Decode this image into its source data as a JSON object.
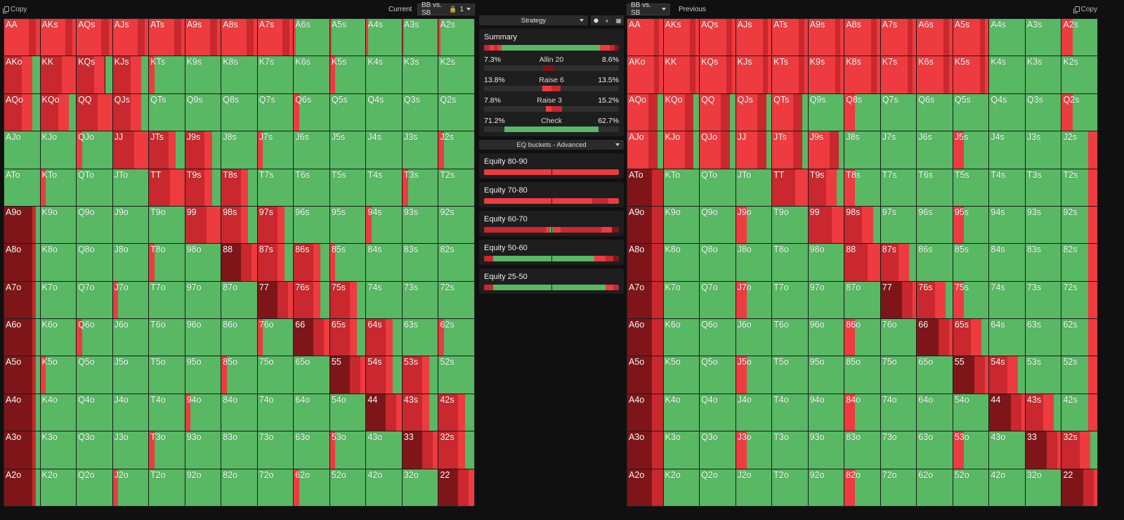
{
  "colors": {
    "green": "#58b864",
    "red": "#ee3b3f",
    "red2": "#c8282e",
    "red3": "#7e1619",
    "bg": "#101010"
  },
  "left": {
    "copy_label": "Copy",
    "current_label": "Current",
    "select_value": "BB vs. SB",
    "lock_value": "1"
  },
  "right": {
    "copy_label": "Copy",
    "previous_label": "Previous",
    "select_value": "BB vs. SB"
  },
  "middle": {
    "strategy_label": "Strategy",
    "tool_icons": [
      "cube-icon",
      "contrast-icon",
      "grid-icon"
    ],
    "summary": {
      "title": "Summary",
      "rows": [
        {
          "left": "7.3%",
          "name": "Allin 20",
          "right": "8.6%"
        },
        {
          "left": "13.8%",
          "name": "Raise 6",
          "right": "13.5%"
        },
        {
          "left": "7.8%",
          "name": "Raise 3",
          "right": "15.2%"
        },
        {
          "left": "71.2%",
          "name": "Check",
          "right": "62.7%"
        }
      ]
    },
    "eq_label": "EQ buckets - Advanced",
    "buckets": [
      {
        "title": "Equity 80-90"
      },
      {
        "title": "Equity 70-80"
      },
      {
        "title": "Equity 60-70"
      },
      {
        "title": "Equity 50-60"
      },
      {
        "title": "Equity 25-50"
      }
    ]
  },
  "hands": [
    "AA",
    "AKs",
    "AQs",
    "AJs",
    "ATs",
    "A9s",
    "A8s",
    "A7s",
    "A6s",
    "A5s",
    "A4s",
    "A3s",
    "A2s",
    "AKo",
    "KK",
    "KQs",
    "KJs",
    "KTs",
    "K9s",
    "K8s",
    "K7s",
    "K6s",
    "K5s",
    "K4s",
    "K3s",
    "K2s",
    "AQo",
    "KQo",
    "QQ",
    "QJs",
    "QTs",
    "Q9s",
    "Q8s",
    "Q7s",
    "Q6s",
    "Q5s",
    "Q4s",
    "Q3s",
    "Q2s",
    "AJo",
    "KJo",
    "QJo",
    "JJ",
    "JTs",
    "J9s",
    "J8s",
    "J7s",
    "J6s",
    "J5s",
    "J4s",
    "J3s",
    "J2s",
    "ATo",
    "KTo",
    "QTo",
    "JTo",
    "TT",
    "T9s",
    "T8s",
    "T7s",
    "T6s",
    "T5s",
    "T4s",
    "T3s",
    "T2s",
    "A9o",
    "K9o",
    "Q9o",
    "J9o",
    "T9o",
    "99",
    "98s",
    "97s",
    "96s",
    "95s",
    "94s",
    "93s",
    "92s",
    "A8o",
    "K8o",
    "Q8o",
    "J8o",
    "T8o",
    "98o",
    "88",
    "87s",
    "86s",
    "85s",
    "84s",
    "83s",
    "82s",
    "A7o",
    "K7o",
    "Q7o",
    "J7o",
    "T7o",
    "97o",
    "87o",
    "77",
    "76s",
    "75s",
    "74s",
    "73s",
    "72s",
    "A6o",
    "K6o",
    "Q6o",
    "J6o",
    "T6o",
    "96o",
    "86o",
    "76o",
    "66",
    "65s",
    "64s",
    "63s",
    "62s",
    "A5o",
    "K5o",
    "Q5o",
    "J5o",
    "T5o",
    "95o",
    "85o",
    "75o",
    "65o",
    "55",
    "54s",
    "53s",
    "52s",
    "A4o",
    "K4o",
    "Q4o",
    "J4o",
    "T4o",
    "94o",
    "84o",
    "74o",
    "64o",
    "54o",
    "44",
    "43s",
    "42s",
    "A3o",
    "K3o",
    "Q3o",
    "J3o",
    "T3o",
    "93o",
    "83o",
    "73o",
    "63o",
    "53o",
    "43o",
    "33",
    "32s",
    "A2o",
    "K2o",
    "Q2o",
    "J2o",
    "T2o",
    "92o",
    "82o",
    "72o",
    "62o",
    "52o",
    "42o",
    "32o",
    "22"
  ]
}
